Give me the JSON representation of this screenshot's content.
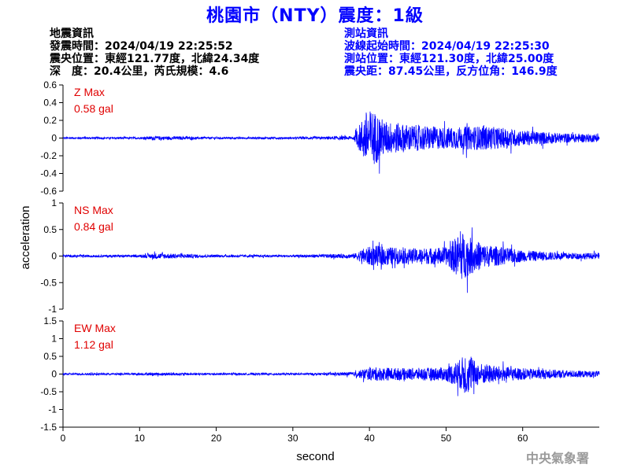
{
  "title": "桃園市（NTY）震度：1級",
  "info_left": {
    "line1": "地震資訊",
    "line2": "發震時間：2024/04/19 22:25:52",
    "line3": "震央位置：東經121.77度，北緯24.34度",
    "line4": "深　度：20.4公里，芮氏規模：4.6"
  },
  "info_right": {
    "line1": "測站資訊",
    "line2": "波線起始時間：2024/04/19 22:25:30",
    "line3": "測站位置：東經121.30度，北緯25.00度",
    "line4": "震央距：87.45公里，反方位角：146.9度"
  },
  "watermark": "中央氣象署",
  "colors": {
    "trace": "#0000ff",
    "max_label": "#e00000",
    "title": "#0000ff"
  },
  "chart_data": [
    {
      "type": "line",
      "component": "Z",
      "max_label": "Z Max",
      "max_value": "0.58 gal",
      "xlim": [
        0,
        70
      ],
      "ylim": [
        -0.6,
        0.6
      ],
      "yticks": [
        0.6,
        0.4,
        0.2,
        0,
        -0.2,
        -0.4,
        -0.6
      ],
      "ytick_labels": [
        "0.6",
        "0.4",
        "0.2",
        "0",
        "-0.2",
        "-0.4",
        "-0.6"
      ],
      "envelope": {
        "t": [
          0,
          10,
          12,
          20,
          30,
          34,
          38,
          39.5,
          40.5,
          42,
          45,
          50,
          55,
          60,
          65,
          70
        ],
        "amp": [
          0.02,
          0.02,
          0.04,
          0.02,
          0.02,
          0.03,
          0.04,
          0.55,
          0.58,
          0.35,
          0.28,
          0.22,
          0.25,
          0.16,
          0.1,
          0.08
        ]
      }
    },
    {
      "type": "line",
      "component": "NS",
      "max_label": "NS Max",
      "max_value": "0.84 gal",
      "xlim": [
        0,
        70
      ],
      "ylim": [
        -1,
        1
      ],
      "yticks": [
        1,
        0.5,
        0,
        -0.5,
        -1
      ],
      "ytick_labels": [
        "1",
        "0.5",
        "0",
        "-0.5",
        "-1"
      ],
      "envelope": {
        "t": [
          0,
          10,
          12,
          20,
          30,
          34,
          38,
          39.5,
          41,
          45,
          50,
          52,
          53,
          55,
          60,
          65,
          70
        ],
        "amp": [
          0.04,
          0.04,
          0.1,
          0.04,
          0.04,
          0.06,
          0.08,
          0.3,
          0.35,
          0.25,
          0.3,
          0.84,
          0.65,
          0.4,
          0.2,
          0.12,
          0.1
        ]
      }
    },
    {
      "type": "line",
      "component": "EW",
      "max_label": "EW Max",
      "max_value": "1.12 gal",
      "xlim": [
        0,
        70
      ],
      "ylim": [
        -1.5,
        1.5
      ],
      "yticks": [
        1.5,
        1,
        0.5,
        0,
        -0.5,
        -1,
        -1.5
      ],
      "ytick_labels": [
        "1.5",
        "1",
        "0.5",
        "0",
        "-0.5",
        "-1",
        "-1.5"
      ],
      "xticks": [
        0,
        10,
        20,
        30,
        40,
        50,
        60
      ],
      "xtick_labels": [
        "0",
        "10",
        "20",
        "30",
        "40",
        "50",
        "60"
      ],
      "xlabel": "second",
      "envelope": {
        "t": [
          0,
          10,
          12,
          20,
          30,
          34,
          38,
          39.5,
          41,
          45,
          50,
          52,
          52.5,
          54,
          57,
          60,
          65,
          70
        ],
        "amp": [
          0.05,
          0.05,
          0.08,
          0.05,
          0.05,
          0.06,
          0.1,
          0.3,
          0.35,
          0.3,
          0.35,
          0.8,
          1.12,
          0.6,
          0.4,
          0.3,
          0.2,
          0.15
        ]
      }
    }
  ],
  "ylabel": "acceleration"
}
